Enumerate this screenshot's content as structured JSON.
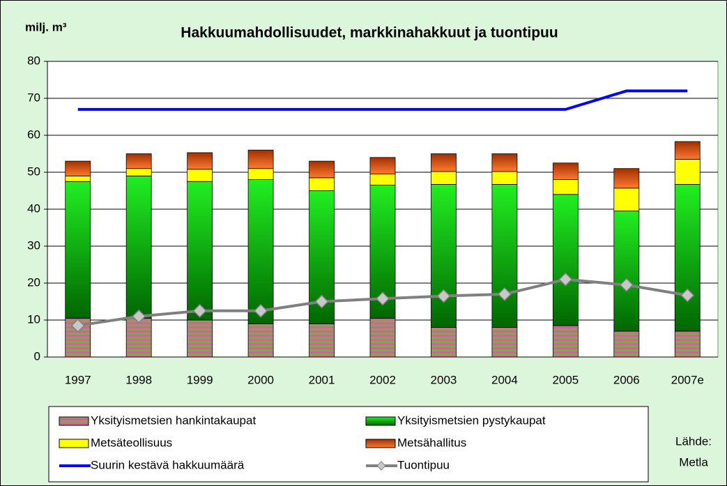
{
  "chart_data": {
    "type": "bar",
    "stacked": true,
    "title": "Hakkuumahdollisuudet, markkinahakkuut ja tuontipuu",
    "y_label": "milj. m³",
    "source": [
      "Lähde:",
      "Metla"
    ],
    "categories": [
      "1997",
      "1998",
      "1999",
      "2000",
      "2001",
      "2002",
      "2003",
      "2004",
      "2005",
      "2006",
      "2007e"
    ],
    "ylim": [
      0,
      80
    ],
    "yticks": [
      0,
      10,
      20,
      30,
      40,
      50,
      60,
      70,
      80
    ],
    "grid": true,
    "series": [
      {
        "name": "Yksityismetsien hankintakaupat",
        "kind": "bar",
        "color": "#66bb33",
        "pattern": "stripes",
        "values": [
          10.5,
          10.5,
          10,
          9,
          9,
          10.5,
          8,
          8,
          8.5,
          7,
          7
        ]
      },
      {
        "name": "Yksityismetsien pystykaupat",
        "kind": "bar",
        "color": "#00cc00",
        "gradient": true,
        "values": [
          37,
          38.5,
          37.5,
          39,
          36,
          36,
          38.7,
          38.7,
          35.5,
          32.5,
          39.7
        ]
      },
      {
        "name": "Metsäteollisuus",
        "kind": "bar",
        "color": "#ffff00",
        "values": [
          1.5,
          2,
          3.3,
          3,
          3.5,
          3,
          3.5,
          3.5,
          4,
          6.2,
          6.8
        ]
      },
      {
        "name": "Metsähallitus",
        "kind": "bar",
        "color": "#e85a10",
        "gradient": true,
        "values": [
          4,
          4,
          4.5,
          5,
          4.5,
          4.5,
          4.8,
          4.8,
          4.5,
          5.3,
          4.8
        ]
      },
      {
        "name": "Suurin kestävä hakkuumäärä",
        "kind": "line",
        "color": "#0000ff",
        "values": [
          67,
          67,
          67,
          67,
          67,
          67,
          67,
          67,
          67,
          72,
          72
        ]
      },
      {
        "name": "Tuontipuu",
        "kind": "line",
        "color": "#808080",
        "marker": "diamond",
        "values": [
          8.5,
          11,
          12.5,
          12.5,
          15,
          15.8,
          16.5,
          17,
          21,
          19.5,
          16.7
        ]
      }
    ]
  }
}
